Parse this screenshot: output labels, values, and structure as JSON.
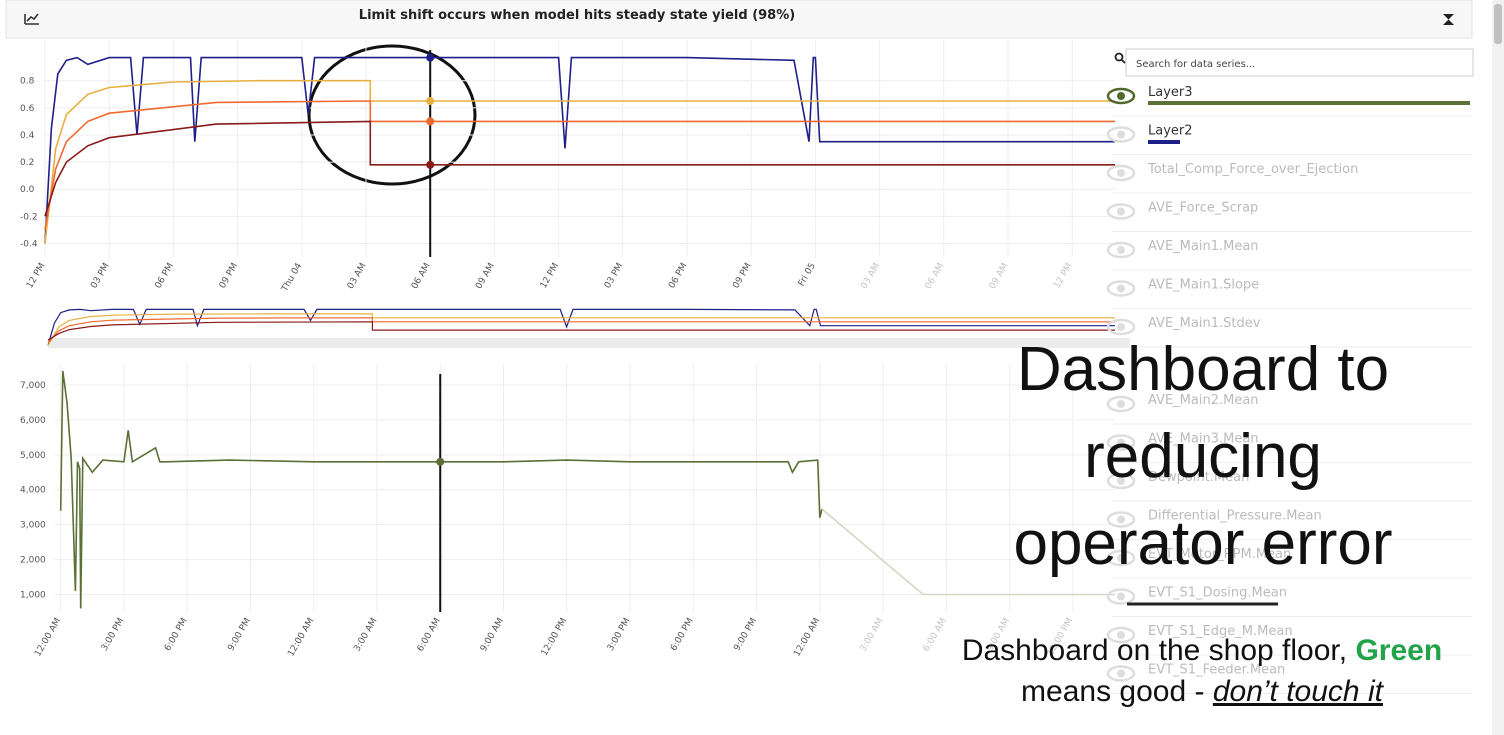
{
  "header": {
    "title": "Limit shift occurs when model hits steady state yield (98%)"
  },
  "chart_data": [
    {
      "type": "line",
      "xlim": [
        0,
        50
      ],
      "xticks": [
        {
          "value": 0,
          "label": "12 PM"
        },
        {
          "value": 3,
          "label": "03 PM"
        },
        {
          "value": 6,
          "label": "06 PM"
        },
        {
          "value": 9,
          "label": "09 PM"
        },
        {
          "value": 12,
          "label": "Thu 04"
        },
        {
          "value": 15,
          "label": "03 AM"
        },
        {
          "value": 18,
          "label": "06 AM"
        },
        {
          "value": 21,
          "label": "09 AM"
        },
        {
          "value": 24,
          "label": "12 PM"
        },
        {
          "value": 27,
          "label": "03 PM"
        },
        {
          "value": 30,
          "label": "06 PM"
        },
        {
          "value": 33,
          "label": "09 PM"
        },
        {
          "value": 36,
          "label": "Fri 05"
        },
        {
          "value": 39,
          "label": "03 AM"
        },
        {
          "value": 42,
          "label": "06 AM"
        },
        {
          "value": 45,
          "label": "09 AM"
        },
        {
          "value": 48,
          "label": "12 PM"
        }
      ],
      "ylim": [
        -0.5,
        1.1
      ],
      "yticks": [
        -0.4,
        -0.2,
        {
          "value": 0,
          "label": "0.0"
        },
        0.2,
        0.4,
        0.6,
        0.8
      ],
      "series": [
        {
          "color": "#1f1f8a",
          "x": [
            0,
            0.3,
            0.6,
            1,
            1.5,
            2,
            3,
            4,
            4.3,
            4.6,
            6,
            6.8,
            7,
            7.3,
            9,
            12,
            12.3,
            12.6,
            15,
            18,
            21,
            24,
            24.3,
            24.6,
            30,
            35,
            35.7,
            35.9,
            36,
            36.2,
            50
          ],
          "values": [
            -0.4,
            0.45,
            0.85,
            0.95,
            0.97,
            0.92,
            0.97,
            0.97,
            0.4,
            0.97,
            0.97,
            0.97,
            0.35,
            0.97,
            0.97,
            0.97,
            0.55,
            0.97,
            0.97,
            0.97,
            0.97,
            0.97,
            0.3,
            0.97,
            0.97,
            0.95,
            0.35,
            0.97,
            0.97,
            0.35,
            0.35
          ]
        },
        {
          "color": "#e8b040",
          "x": [
            0,
            0.5,
            1,
            2,
            3,
            6,
            10,
            15.2,
            15.2,
            50
          ],
          "values": [
            -0.4,
            0.3,
            0.55,
            0.7,
            0.75,
            0.79,
            0.8,
            0.8,
            0.65,
            0.65
          ]
        },
        {
          "color": "#f06a30",
          "x": [
            0,
            0.5,
            1,
            2,
            3,
            8,
            15.2,
            15.2,
            50
          ],
          "values": [
            -0.3,
            0.15,
            0.35,
            0.5,
            0.56,
            0.64,
            0.65,
            0.5,
            0.5
          ]
        },
        {
          "color": "#8b1a1a",
          "x": [
            0,
            0.5,
            1,
            2,
            3,
            8,
            15.2,
            15.2,
            50
          ],
          "values": [
            -0.2,
            0.05,
            0.2,
            0.32,
            0.38,
            0.48,
            0.5,
            0.18,
            0.18
          ]
        }
      ],
      "crosshair": {
        "x": 18,
        "values": [
          0.97,
          0.65,
          0.5,
          0.18
        ]
      }
    },
    {
      "type": "line",
      "xlim": [
        -0.3,
        50
      ],
      "xticks": [
        {
          "value": 0,
          "label": "12:00 AM"
        },
        {
          "value": 3,
          "label": "3:00 PM"
        },
        {
          "value": 6,
          "label": "6:00 PM"
        },
        {
          "value": 9,
          "label": "9:00 PM"
        },
        {
          "value": 12,
          "label": "12:00 AM"
        },
        {
          "value": 15,
          "label": "3:00 AM"
        },
        {
          "value": 18,
          "label": "6:00 AM"
        },
        {
          "value": 21,
          "label": "9:00 AM"
        },
        {
          "value": 24,
          "label": "12:00 PM"
        },
        {
          "value": 27,
          "label": "3:00 PM"
        },
        {
          "value": 30,
          "label": "6:00 PM"
        },
        {
          "value": 33,
          "label": "9:00 PM"
        },
        {
          "value": 36,
          "label": "12:00 AM"
        },
        {
          "value": 39,
          "label": "3:00 AM"
        },
        {
          "value": 42,
          "label": "6:00 AM"
        },
        {
          "value": 45,
          "label": "9:00 AM"
        },
        {
          "value": 48,
          "label": "12:00 PM"
        }
      ],
      "ylim": [
        500,
        7600
      ],
      "yticks": [
        {
          "value": 1000,
          "label": "1,000"
        },
        {
          "value": 2000,
          "label": "2,000"
        },
        {
          "value": 3000,
          "label": "3,000"
        },
        {
          "value": 4000,
          "label": "4,000"
        },
        {
          "value": 5000,
          "label": "5,000"
        },
        {
          "value": 6000,
          "label": "6,000"
        },
        {
          "value": 7000,
          "label": "7,000"
        }
      ],
      "series": [
        {
          "color": "#5a7035",
          "x": [
            0,
            0.1,
            0.3,
            0.5,
            0.7,
            0.8,
            0.9,
            0.95,
            1.05,
            1.5,
            2,
            3,
            3.2,
            3.4,
            4.5,
            4.7,
            5,
            8,
            12,
            15,
            18,
            21,
            24,
            27,
            30,
            33,
            34.5,
            34.7,
            35,
            35.9,
            36,
            36.1
          ],
          "values": [
            3400,
            7400,
            6500,
            4900,
            1100,
            4800,
            4600,
            600,
            4900,
            4500,
            4850,
            4800,
            5700,
            4800,
            5200,
            4800,
            4800,
            4850,
            4800,
            4800,
            4800,
            4800,
            4850,
            4800,
            4800,
            4800,
            4800,
            4500,
            4800,
            4850,
            3200,
            3450
          ]
        },
        {
          "color": "#d6d6c4",
          "x": [
            36.1,
            40.9,
            50
          ],
          "values": [
            3450,
            1000,
            1000
          ]
        }
      ],
      "crosshair": {
        "x": 18,
        "values": [
          4800
        ]
      }
    }
  ],
  "series_list": {
    "placeholder": "Search for data series...",
    "items": [
      "Layer3",
      "Layer2",
      "Total_Comp_Force_over_Ejection",
      "AVE_Force_Scrap",
      "AVE_Main1.Mean",
      "AVE_Main1.Slope",
      "AVE_Main1.Stdev",
      "AVE_Main2.Mean",
      "AVE_Main3.Mean",
      "Dewpoint.Mean",
      "Differential_Pressure.Mean",
      "EVT_Motor_RPM.Mean",
      "EVT_S1_Dosing.Mean",
      "EVT_S1_Edge_M.Mean",
      "EVT_S1_Feeder.Mean"
    ]
  },
  "overlay": {
    "headline": [
      "Dashboard to",
      "reducing",
      "operator error"
    ],
    "caption_start": "Dashboard on the shop floor, ",
    "caption_green": "Green",
    "caption_middle": "means good - ",
    "caption_end": "don’t touch it"
  }
}
